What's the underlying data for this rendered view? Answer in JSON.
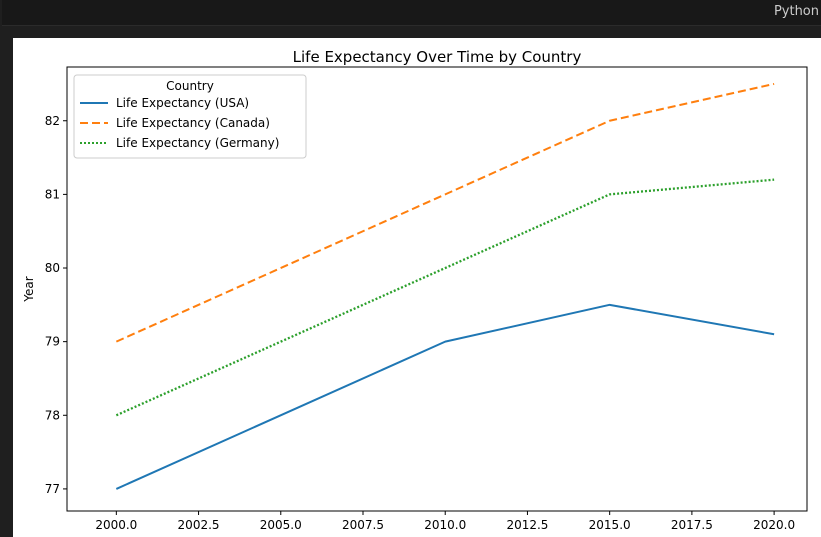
{
  "editor": {
    "language_label": "Python"
  },
  "chart_data": {
    "type": "line",
    "title": "Life Expectancy Over Time by Country",
    "xlabel": "",
    "ylabel": "Year",
    "x": [
      2000,
      2010,
      2015,
      2020
    ],
    "xlim": [
      1998.5,
      2021.0
    ],
    "ylim": [
      76.7,
      82.73
    ],
    "x_ticks": [
      2000.0,
      2002.5,
      2005.0,
      2007.5,
      2010.0,
      2012.5,
      2015.0,
      2017.5,
      2020.0
    ],
    "x_tick_labels": [
      "2000.0",
      "2002.5",
      "2005.0",
      "2007.5",
      "2010.0",
      "2012.5",
      "2015.0",
      "2017.5",
      "2020.0"
    ],
    "y_ticks": [
      77,
      78,
      79,
      80,
      81,
      82
    ],
    "y_tick_labels": [
      "77",
      "78",
      "79",
      "80",
      "81",
      "82"
    ],
    "grid": false,
    "legend": {
      "title": "Country",
      "placement": "top-left"
    },
    "series": [
      {
        "name": "Life Expectancy (USA)",
        "values": [
          77.0,
          79.0,
          79.5,
          79.1
        ],
        "color": "#1f77b4",
        "style": "solid"
      },
      {
        "name": "Life Expectancy (Canada)",
        "values": [
          79.0,
          81.0,
          82.0,
          82.5
        ],
        "color": "#ff7f0e",
        "style": "dashed"
      },
      {
        "name": "Life Expectancy (Germany)",
        "values": [
          78.0,
          80.0,
          81.0,
          81.2
        ],
        "color": "#2ca02c",
        "style": "dotted"
      }
    ]
  }
}
